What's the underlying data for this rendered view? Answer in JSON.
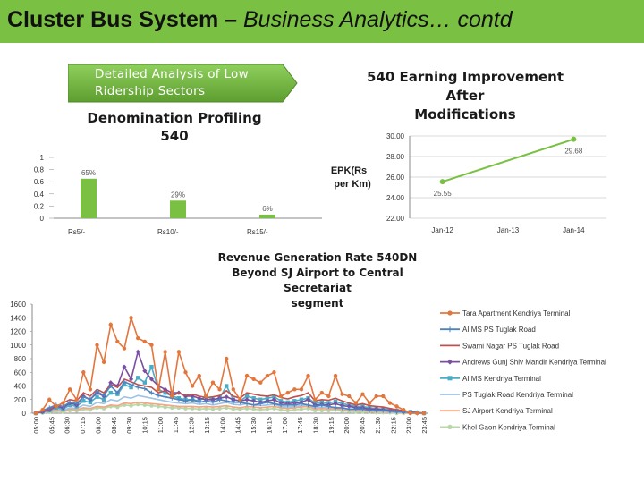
{
  "header": {
    "title_main": "Cluster Bus System –",
    "title_italic": "Business Analytics… contd",
    "accent_color": "#7ac143"
  },
  "callout": {
    "line1": "Detailed Analysis of Low",
    "line2": "Ridership Sectors",
    "color": "#6cae3a"
  },
  "chart_data": [
    {
      "type": "bar",
      "title": "Denomination Profiling 540",
      "title_line1": "Denomination Profiling",
      "title_line2": "540",
      "categories": [
        "Rs5/-",
        "Rs10/-",
        "Rs15/-"
      ],
      "values": [
        0.65,
        0.29,
        0.06
      ],
      "data_labels": [
        "65%",
        "29%",
        "6%"
      ],
      "yticks": [
        "0",
        "0.2",
        "0.4",
        "0.6",
        "0.8",
        "1"
      ],
      "ylim": [
        0,
        1
      ],
      "grid": false,
      "color": "#7ac143"
    },
    {
      "type": "line",
      "title": "540 Earning Improvement After Modifications",
      "title_line1": "540 Earning Improvement After",
      "title_line2": "Modifications",
      "ylabel_line1": "EPK(Rs",
      "ylabel_line2": "per Km)",
      "x": [
        "Jan-12",
        "Jan-13",
        "Jan-14"
      ],
      "points": [
        {
          "x": "Jan-12",
          "y": 25.55,
          "label": "25.55"
        },
        {
          "x": "Jan-14",
          "y": 29.68,
          "label": "29.68"
        }
      ],
      "yticks": [
        "22.00",
        "24.00",
        "26.00",
        "28.00",
        "30.00"
      ],
      "ylim": [
        22,
        30
      ],
      "grid": true,
      "color": "#7ac143"
    },
    {
      "type": "line",
      "title": "Revenue Generation Rate 540DN Beyond SJ Airport to Central Secretariat segment",
      "title_line1": "Revenue Generation Rate 540DN",
      "title_line2": "Beyond SJ Airport to Central Secretariat",
      "title_line3": "segment",
      "yticks": [
        "0",
        "200",
        "400",
        "600",
        "800",
        "1000",
        "1200",
        "1400",
        "1600"
      ],
      "ylim": [
        0,
        1600
      ],
      "xticks": [
        "05:00",
        "05:45",
        "06:30",
        "07:15",
        "08:00",
        "08:45",
        "09:30",
        "10:15",
        "11:00",
        "11:45",
        "12:30",
        "13:15",
        "14:00",
        "14:45",
        "15:30",
        "16:15",
        "17:00",
        "17:45",
        "18:30",
        "19:15",
        "20:00",
        "20:45",
        "21:30",
        "22:15",
        "23:00",
        "23:45"
      ],
      "legend_position": "right",
      "series": [
        {
          "name": "Tara Apartment Kendriya Terminal",
          "color": "#e3763d",
          "marker": "circle",
          "values": [
            0,
            50,
            200,
            100,
            150,
            350,
            200,
            600,
            350,
            1000,
            750,
            1300,
            1050,
            950,
            1400,
            1100,
            1050,
            1000,
            350,
            900,
            250,
            900,
            600,
            400,
            550,
            250,
            450,
            350,
            800,
            350,
            200,
            550,
            500,
            450,
            550,
            600,
            250,
            300,
            350,
            350,
            550,
            200,
            300,
            250,
            550,
            280,
            250,
            150,
            280,
            150,
            250,
            250,
            150,
            100,
            50,
            0,
            0,
            0
          ]
        },
        {
          "name": "AIIMS PS Tuglak Road",
          "color": "#4e83be",
          "marker": "plus",
          "values": [
            0,
            40,
            80,
            120,
            100,
            160,
            140,
            240,
            200,
            320,
            260,
            400,
            300,
            460,
            420,
            380,
            360,
            300,
            260,
            240,
            220,
            200,
            180,
            200,
            160,
            180,
            160,
            200,
            180,
            160,
            160,
            140,
            120,
            140,
            160,
            140,
            120,
            120,
            120,
            140,
            120,
            100,
            120,
            100,
            80,
            80,
            60,
            60,
            60,
            40,
            40,
            40,
            30,
            20,
            20,
            10,
            10,
            0
          ]
        },
        {
          "name": "Swami Nagar PS Tuglak Road",
          "color": "#c0504d",
          "marker": "line",
          "values": [
            0,
            30,
            60,
            100,
            150,
            200,
            180,
            300,
            250,
            350,
            300,
            420,
            380,
            500,
            460,
            420,
            400,
            380,
            300,
            330,
            250,
            300,
            260,
            280,
            250,
            230,
            240,
            260,
            330,
            250,
            220,
            300,
            280,
            260,
            250,
            270,
            230,
            210,
            240,
            260,
            300,
            180,
            200,
            190,
            220,
            180,
            150,
            120,
            140,
            110,
            100,
            90,
            70,
            50,
            40,
            20,
            10,
            0
          ]
        },
        {
          "name": "Andrews Gunj Shiv Mandir Kendriya Terminal",
          "color": "#7b4f9f",
          "marker": "diamond",
          "values": [
            0,
            20,
            50,
            100,
            80,
            150,
            120,
            250,
            200,
            300,
            250,
            450,
            400,
            680,
            500,
            900,
            620,
            500,
            400,
            350,
            300,
            300,
            250,
            250,
            220,
            200,
            200,
            220,
            240,
            200,
            180,
            200,
            180,
            160,
            180,
            200,
            150,
            140,
            150,
            160,
            200,
            120,
            130,
            120,
            140,
            110,
            100,
            80,
            80,
            60,
            60,
            50,
            40,
            30,
            20,
            10,
            0,
            0
          ]
        },
        {
          "name": "AIIMS Kendriya Terminal",
          "color": "#4bacc6",
          "marker": "square",
          "values": [
            0,
            20,
            40,
            80,
            60,
            120,
            100,
            180,
            160,
            240,
            200,
            300,
            280,
            420,
            380,
            520,
            450,
            680,
            350,
            300,
            250,
            220,
            200,
            200,
            180,
            250,
            200,
            220,
            400,
            200,
            180,
            250,
            220,
            200,
            220,
            240,
            180,
            160,
            180,
            200,
            220,
            150,
            160,
            150,
            170,
            140,
            120,
            100,
            100,
            80,
            70,
            60,
            50,
            40,
            30,
            20,
            10,
            0
          ]
        },
        {
          "name": "PS Tuglak Road Kendriya Terminal",
          "color": "#9dc3e6",
          "marker": "line",
          "values": [
            0,
            10,
            30,
            60,
            40,
            80,
            70,
            120,
            100,
            160,
            140,
            200,
            180,
            240,
            220,
            260,
            240,
            220,
            200,
            180,
            160,
            150,
            140,
            150,
            130,
            140,
            120,
            140,
            160,
            130,
            120,
            140,
            120,
            110,
            120,
            130,
            100,
            90,
            100,
            110,
            120,
            80,
            90,
            80,
            90,
            70,
            60,
            50,
            50,
            40,
            30,
            30,
            20,
            10,
            10,
            0,
            0,
            0
          ]
        },
        {
          "name": "SJ Airport Kendriya Terminal",
          "color": "#f4a582",
          "marker": "line",
          "values": [
            0,
            10,
            20,
            40,
            30,
            60,
            50,
            80,
            70,
            100,
            90,
            120,
            110,
            150,
            140,
            160,
            150,
            140,
            130,
            120,
            110,
            100,
            100,
            100,
            90,
            100,
            90,
            100,
            110,
            90,
            80,
            100,
            90,
            80,
            90,
            100,
            80,
            70,
            80,
            90,
            100,
            60,
            70,
            60,
            70,
            50,
            50,
            40,
            40,
            30,
            20,
            20,
            10,
            10,
            0,
            0,
            0,
            0
          ]
        },
        {
          "name": "Khel Gaon Kendriya Terminal",
          "color": "#b7d7a8",
          "marker": "circle",
          "values": [
            0,
            5,
            15,
            30,
            20,
            40,
            35,
            60,
            50,
            80,
            70,
            100,
            90,
            120,
            110,
            130,
            120,
            110,
            100,
            90,
            80,
            80,
            70,
            70,
            60,
            70,
            60,
            70,
            80,
            60,
            60,
            70,
            60,
            50,
            60,
            70,
            50,
            40,
            50,
            60,
            70,
            40,
            40,
            40,
            50,
            30,
            30,
            20,
            20,
            20,
            10,
            10,
            10,
            0,
            0,
            0,
            0,
            0
          ]
        }
      ]
    }
  ]
}
